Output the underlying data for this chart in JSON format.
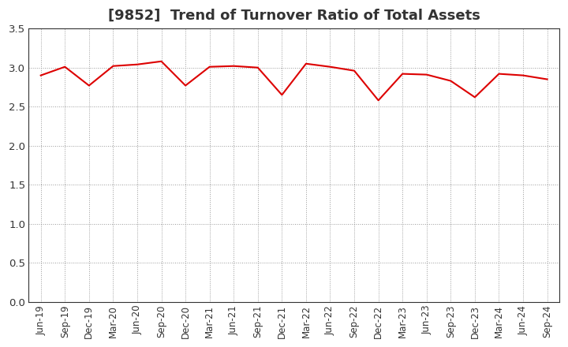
{
  "title": "[9852]  Trend of Turnover Ratio of Total Assets",
  "x_labels": [
    "Jun-19",
    "Sep-19",
    "Dec-19",
    "Mar-20",
    "Jun-20",
    "Sep-20",
    "Dec-20",
    "Mar-21",
    "Jun-21",
    "Sep-21",
    "Dec-21",
    "Mar-22",
    "Jun-22",
    "Sep-22",
    "Dec-22",
    "Mar-23",
    "Jun-23",
    "Sep-23",
    "Dec-23",
    "Mar-24",
    "Jun-24",
    "Sep-24"
  ],
  "y_values": [
    2.9,
    3.01,
    2.77,
    3.02,
    3.04,
    3.08,
    2.77,
    3.01,
    3.02,
    3.0,
    2.65,
    3.05,
    3.01,
    2.96,
    2.58,
    2.92,
    2.91,
    2.83,
    2.62,
    2.92,
    2.9,
    2.85
  ],
  "line_color": "#dd0000",
  "background_color": "#ffffff",
  "plot_bg_color": "#ffffff",
  "ylim": [
    0.0,
    3.5
  ],
  "yticks": [
    0.0,
    0.5,
    1.0,
    1.5,
    2.0,
    2.5,
    3.0,
    3.5
  ],
  "grid_color": "#999999",
  "title_fontsize": 13,
  "tick_fontsize": 8.5
}
